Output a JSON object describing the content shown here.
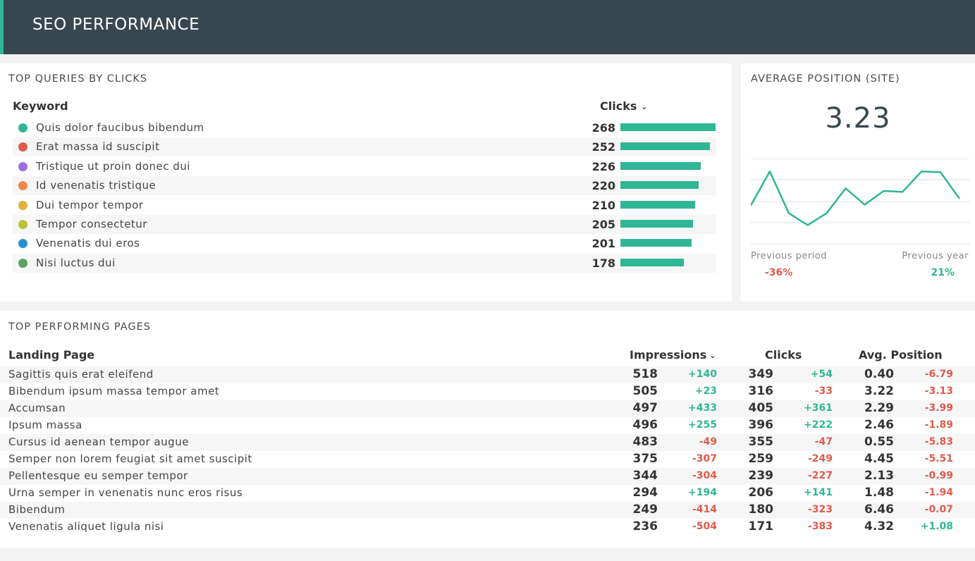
{
  "header": {
    "title": "SEO PERFORMANCE"
  },
  "colors": {
    "accent": "#2fb695",
    "header_bg": "#37474f",
    "positive": "#2fb695",
    "negative": "#e05b4c"
  },
  "top_queries": {
    "title": "TOP QUERIES BY CLICKS",
    "col_keyword": "Keyword",
    "col_clicks": "Clicks",
    "sort_icon": "chevron-down-icon",
    "rows": [
      {
        "keyword": "Quis dolor faucibus bibendum",
        "clicks": "268",
        "color": "#2fb695"
      },
      {
        "keyword": "Erat massa id suscipit",
        "clicks": "252",
        "color": "#e05b4c"
      },
      {
        "keyword": "Tristique ut proin donec dui",
        "clicks": "226",
        "color": "#9b6ee0"
      },
      {
        "keyword": "Id venenatis tristique",
        "clicks": "220",
        "color": "#f0874a"
      },
      {
        "keyword": "Dui tempor tempor",
        "clicks": "210",
        "color": "#e2b23c"
      },
      {
        "keyword": "Tempor consectetur",
        "clicks": "205",
        "color": "#b9c43c"
      },
      {
        "keyword": "Venenatis dui eros",
        "clicks": "201",
        "color": "#2b8fcf"
      },
      {
        "keyword": "Nisi luctus dui",
        "clicks": "178",
        "color": "#5aa363"
      }
    ]
  },
  "avg_position": {
    "title": "AVERAGE POSITION (SITE)",
    "value": "3.23",
    "prev_period_label": "Previous period",
    "prev_period_value": "-36%",
    "prev_year_label": "Previous year",
    "prev_year_value": "21%",
    "sparkline": [
      0.45,
      0.85,
      0.36,
      0.22,
      0.36,
      0.65,
      0.46,
      0.62,
      0.61,
      0.85,
      0.84,
      0.53
    ]
  },
  "top_pages": {
    "title": "TOP PERFORMING PAGES",
    "col_page": "Landing Page",
    "col_impressions": "Impressions",
    "col_clicks": "Clicks",
    "col_position": "Avg. Position",
    "sort_icon": "chevron-down-icon",
    "rows": [
      {
        "page": "Sagittis quis erat eleifend",
        "impressions": "518",
        "imp_delta": "+140",
        "clicks": "349",
        "clk_delta": "+54",
        "position": "0.40",
        "pos_delta": "-6.79"
      },
      {
        "page": "Bibendum ipsum massa tempor amet",
        "impressions": "505",
        "imp_delta": "+23",
        "clicks": "316",
        "clk_delta": "-33",
        "position": "3.22",
        "pos_delta": "-3.13"
      },
      {
        "page": "Accumsan",
        "impressions": "497",
        "imp_delta": "+433",
        "clicks": "405",
        "clk_delta": "+361",
        "position": "2.29",
        "pos_delta": "-3.99"
      },
      {
        "page": "Ipsum massa",
        "impressions": "496",
        "imp_delta": "+255",
        "clicks": "396",
        "clk_delta": "+222",
        "position": "2.46",
        "pos_delta": "-1.89"
      },
      {
        "page": "Cursus id aenean tempor augue",
        "impressions": "483",
        "imp_delta": "-49",
        "clicks": "355",
        "clk_delta": "-47",
        "position": "0.55",
        "pos_delta": "-5.83"
      },
      {
        "page": "Semper non lorem feugiat sit amet suscipit",
        "impressions": "375",
        "imp_delta": "-307",
        "clicks": "259",
        "clk_delta": "-249",
        "position": "4.45",
        "pos_delta": "-5.51"
      },
      {
        "page": "Pellentesque eu semper tempor",
        "impressions": "344",
        "imp_delta": "-304",
        "clicks": "239",
        "clk_delta": "-227",
        "position": "2.13",
        "pos_delta": "-0.99"
      },
      {
        "page": "Urna semper in venenatis nunc eros risus",
        "impressions": "294",
        "imp_delta": "+194",
        "clicks": "206",
        "clk_delta": "+141",
        "position": "1.48",
        "pos_delta": "-1.94"
      },
      {
        "page": "Bibendum",
        "impressions": "249",
        "imp_delta": "-414",
        "clicks": "180",
        "clk_delta": "-323",
        "position": "6.46",
        "pos_delta": "-0.07"
      },
      {
        "page": "Venenatis aliquet ligula nisi",
        "impressions": "236",
        "imp_delta": "-504",
        "clicks": "171",
        "clk_delta": "-383",
        "position": "4.32",
        "pos_delta": "+1.08"
      }
    ]
  }
}
